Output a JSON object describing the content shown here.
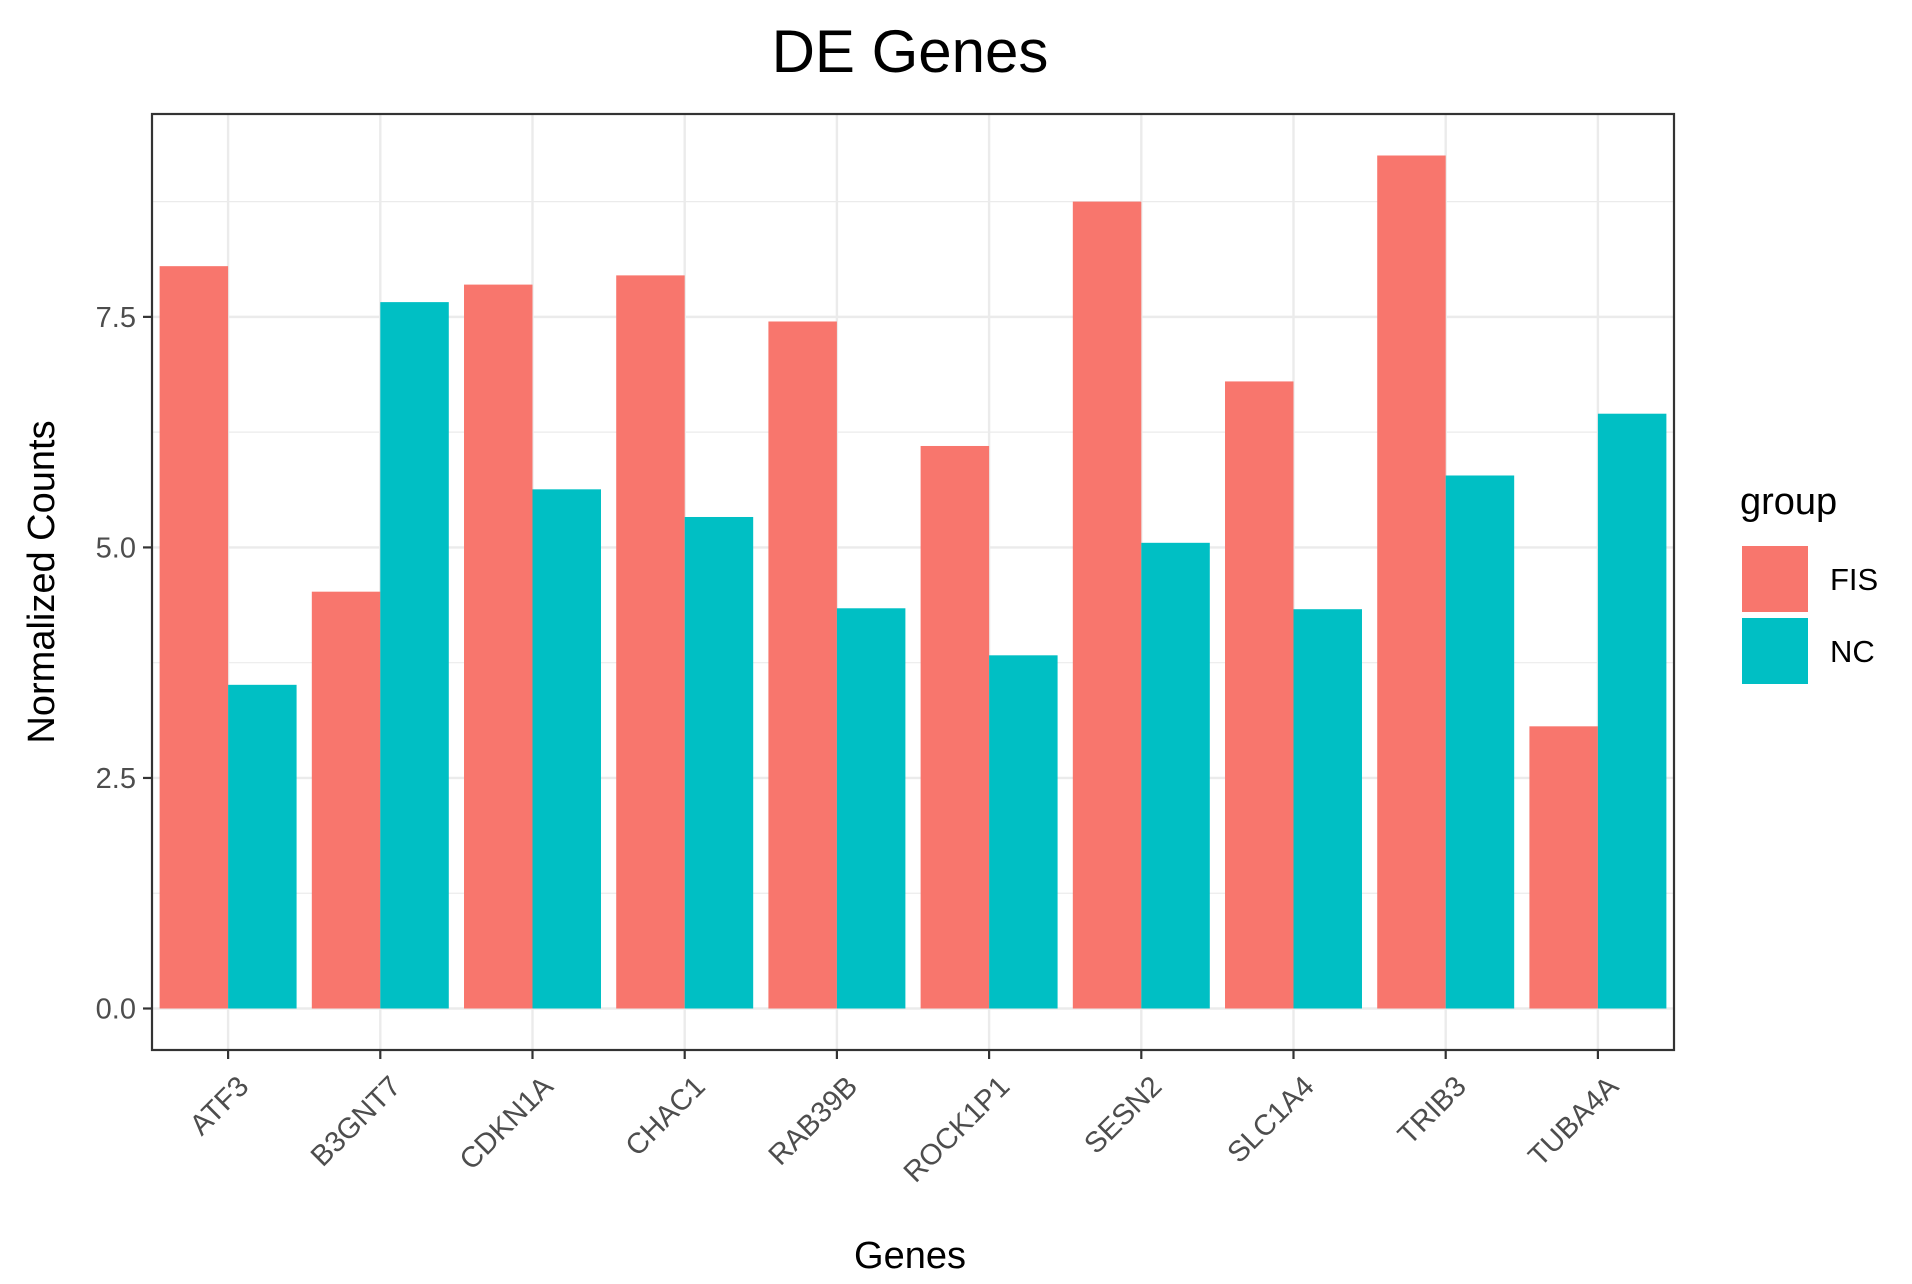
{
  "chart_data": {
    "type": "bar",
    "title": "DE Genes",
    "xlabel": "Genes",
    "ylabel": "Normalized Counts",
    "categories": [
      "ATF3",
      "B3GNT7",
      "CDKN1A",
      "CHAC1",
      "RAB39B",
      "ROCK1P1",
      "SESN2",
      "SLC1A4",
      "TRIB3",
      "TUBA4A"
    ],
    "series": [
      {
        "name": "FIS",
        "color": "#F8766D",
        "values": [
          8.05,
          4.52,
          7.85,
          7.95,
          7.45,
          6.1,
          8.75,
          6.8,
          9.25,
          3.06
        ]
      },
      {
        "name": "NC",
        "color": "#00BFC4",
        "values": [
          3.51,
          7.66,
          5.63,
          5.33,
          4.34,
          3.83,
          5.05,
          4.33,
          5.78,
          6.45
        ]
      }
    ],
    "yticks": [
      "0.0",
      "2.5",
      "5.0",
      "7.5"
    ],
    "ylim": [
      -0.45,
      9.7
    ],
    "legend": {
      "title": "group",
      "position": "right"
    },
    "grid": true
  }
}
